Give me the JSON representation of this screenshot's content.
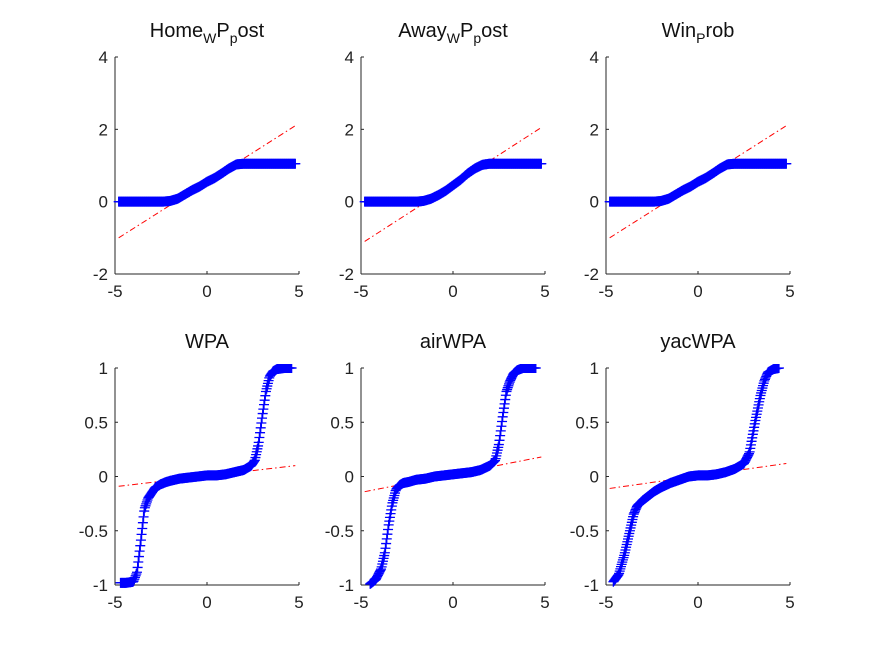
{
  "chart_data": [
    {
      "type": "scatter",
      "title": {
        "base": "Home",
        "sub1": "W",
        "mid": "P",
        "sub2": "p",
        "tail": "ost"
      },
      "xlim": [
        -5,
        5
      ],
      "ylim": [
        -2,
        4
      ],
      "xticks": [
        -5,
        0,
        5
      ],
      "yticks": [
        -2,
        0,
        2,
        4
      ],
      "xtick_labels": [
        "-5",
        "0",
        "5"
      ],
      "ytick_labels": [
        "-2",
        "0",
        "2",
        "4"
      ],
      "x": [
        -4.8,
        -4,
        -3,
        -2.4,
        -2,
        -1.6,
        -1.2,
        -0.8,
        -0.4,
        0,
        0.4,
        0.8,
        1.2,
        1.6,
        2,
        3,
        4,
        4.8
      ],
      "y": [
        0,
        0,
        0,
        0,
        0.02,
        0.08,
        0.2,
        0.32,
        0.42,
        0.55,
        0.65,
        0.78,
        0.92,
        1.03,
        1.05,
        1.05,
        1.05,
        1.05
      ],
      "ref_line": {
        "x": [
          -4.8,
          4.8
        ],
        "y": [
          -1.0,
          2.1
        ]
      },
      "marker_color": "#0000ff",
      "line_color": "#ff0000"
    },
    {
      "type": "scatter",
      "title": {
        "base": "Away",
        "sub1": "W",
        "mid": "P",
        "sub2": "p",
        "tail": "ost"
      },
      "xlim": [
        -5,
        5
      ],
      "ylim": [
        -2,
        4
      ],
      "xticks": [
        -5,
        0,
        5
      ],
      "yticks": [
        -2,
        0,
        2,
        4
      ],
      "xtick_labels": [
        "-5",
        "0",
        "5"
      ],
      "ytick_labels": [
        "-2",
        "0",
        "2",
        "4"
      ],
      "x": [
        -4.8,
        -4,
        -3,
        -2.4,
        -2,
        -1.6,
        -1.2,
        -0.8,
        -0.4,
        0,
        0.4,
        0.8,
        1.2,
        1.6,
        2,
        3,
        4,
        4.8
      ],
      "y": [
        0,
        0,
        0,
        0,
        0,
        0.02,
        0.08,
        0.18,
        0.3,
        0.45,
        0.6,
        0.78,
        0.92,
        1.02,
        1.05,
        1.05,
        1.05,
        1.05
      ],
      "ref_line": {
        "x": [
          -4.8,
          4.8
        ],
        "y": [
          -1.1,
          2.05
        ]
      },
      "marker_color": "#0000ff",
      "line_color": "#ff0000"
    },
    {
      "type": "scatter",
      "title": {
        "base": "Win",
        "sub1": "P",
        "mid": "",
        "sub2": "",
        "tail": "rob"
      },
      "xlim": [
        -5,
        5
      ],
      "ylim": [
        -2,
        4
      ],
      "xticks": [
        -5,
        0,
        5
      ],
      "yticks": [
        -2,
        0,
        2,
        4
      ],
      "xtick_labels": [
        "-5",
        "0",
        "5"
      ],
      "ytick_labels": [
        "-2",
        "0",
        "2",
        "4"
      ],
      "x": [
        -4.8,
        -4,
        -3,
        -2.4,
        -2,
        -1.6,
        -1.2,
        -0.8,
        -0.4,
        0,
        0.4,
        0.8,
        1.2,
        1.6,
        2,
        3,
        4,
        4.8
      ],
      "y": [
        0,
        0,
        0,
        0,
        0.02,
        0.08,
        0.2,
        0.32,
        0.42,
        0.55,
        0.65,
        0.78,
        0.92,
        1.03,
        1.05,
        1.05,
        1.05,
        1.05
      ],
      "ref_line": {
        "x": [
          -4.8,
          4.8
        ],
        "y": [
          -1.0,
          2.1
        ]
      },
      "marker_color": "#0000ff",
      "line_color": "#ff0000"
    },
    {
      "type": "scatter",
      "title": {
        "base": "WPA",
        "sub1": "",
        "mid": "",
        "sub2": "",
        "tail": ""
      },
      "xlim": [
        -5,
        5
      ],
      "ylim": [
        -1,
        1
      ],
      "xticks": [
        -5,
        0,
        5
      ],
      "yticks": [
        -1,
        -0.5,
        0,
        0.5,
        1
      ],
      "xtick_labels": [
        "-5",
        "0",
        "5"
      ],
      "ytick_labels": [
        "-1",
        "-0.5",
        "0",
        "0.5",
        "1"
      ],
      "x": [
        -4.7,
        -4.4,
        -4.0,
        -3.8,
        -3.6,
        -3.4,
        -3.2,
        -3.0,
        -2.8,
        -2.5,
        -2.2,
        -2.0,
        -1.5,
        -1.0,
        -0.5,
        0,
        0.5,
        1.0,
        1.5,
        2.0,
        2.4,
        2.6,
        2.8,
        3.0,
        3.2,
        3.4,
        3.6,
        3.8,
        4.2,
        4.6
      ],
      "y": [
        -0.98,
        -0.98,
        -0.97,
        -0.88,
        -0.6,
        -0.3,
        -0.2,
        -0.15,
        -0.1,
        -0.07,
        -0.05,
        -0.04,
        -0.02,
        -0.01,
        0,
        0.01,
        0.01,
        0.02,
        0.04,
        0.06,
        0.1,
        0.15,
        0.3,
        0.55,
        0.78,
        0.92,
        0.97,
        0.99,
        1.0,
        1.0
      ],
      "ref_line": {
        "x": [
          -4.8,
          4.8
        ],
        "y": [
          -0.09,
          0.1
        ]
      },
      "marker_color": "#0000ff",
      "line_color": "#ff0000"
    },
    {
      "type": "scatter",
      "title": {
        "base": "airWPA",
        "sub1": "",
        "mid": "",
        "sub2": "",
        "tail": ""
      },
      "xlim": [
        -5,
        5
      ],
      "ylim": [
        -1,
        1
      ],
      "xticks": [
        -5,
        0,
        5
      ],
      "yticks": [
        -1,
        -0.5,
        0,
        0.5,
        1
      ],
      "xtick_labels": [
        "-5",
        "0",
        "5"
      ],
      "ytick_labels": [
        "-1",
        "-0.5",
        "0",
        "0.5",
        "1"
      ],
      "x": [
        -4.5,
        -4.2,
        -3.9,
        -3.7,
        -3.5,
        -3.3,
        -3.1,
        -2.9,
        -2.7,
        -2.4,
        -2.0,
        -1.5,
        -1.0,
        -0.5,
        0,
        0.5,
        1.0,
        1.5,
        2.0,
        2.3,
        2.5,
        2.7,
        2.9,
        3.1,
        3.3,
        3.5,
        3.8,
        4.2,
        4.5
      ],
      "y": [
        -0.99,
        -0.95,
        -0.85,
        -0.7,
        -0.45,
        -0.25,
        -0.12,
        -0.08,
        -0.06,
        -0.05,
        -0.03,
        -0.02,
        0,
        0.01,
        0.02,
        0.03,
        0.04,
        0.06,
        0.1,
        0.15,
        0.3,
        0.55,
        0.78,
        0.88,
        0.95,
        0.98,
        1.0,
        1.0,
        1.0
      ],
      "ref_line": {
        "x": [
          -4.8,
          4.8
        ],
        "y": [
          -0.14,
          0.18
        ]
      },
      "marker_color": "#0000ff",
      "line_color": "#ff0000"
    },
    {
      "type": "scatter",
      "title": {
        "base": "yacWPA",
        "sub1": "",
        "mid": "",
        "sub2": "",
        "tail": ""
      },
      "xlim": [
        -5,
        5
      ],
      "ylim": [
        -1,
        1
      ],
      "xticks": [
        -5,
        0,
        5
      ],
      "yticks": [
        -1,
        -0.5,
        0,
        0.5,
        1
      ],
      "xtick_labels": [
        "-5",
        "0",
        "5"
      ],
      "ytick_labels": [
        "-1",
        "-0.5",
        "0",
        "0.5",
        "1"
      ],
      "x": [
        -4.6,
        -4.3,
        -4.0,
        -3.7,
        -3.5,
        -3.3,
        -3.0,
        -2.7,
        -2.4,
        -2.0,
        -1.5,
        -1.0,
        -0.5,
        0,
        0.5,
        1.0,
        1.5,
        2.0,
        2.5,
        2.8,
        3.1,
        3.4,
        3.6,
        3.8,
        4.1,
        4.4
      ],
      "y": [
        -0.97,
        -0.9,
        -0.72,
        -0.5,
        -0.35,
        -0.27,
        -0.22,
        -0.18,
        -0.14,
        -0.1,
        -0.06,
        -0.03,
        0,
        0.01,
        0.01,
        0.02,
        0.04,
        0.07,
        0.12,
        0.22,
        0.5,
        0.75,
        0.88,
        0.96,
        0.99,
        1.0
      ],
      "ref_line": {
        "x": [
          -4.8,
          4.8
        ],
        "y": [
          -0.11,
          0.12
        ]
      },
      "marker_color": "#0000ff",
      "line_color": "#ff0000"
    }
  ]
}
